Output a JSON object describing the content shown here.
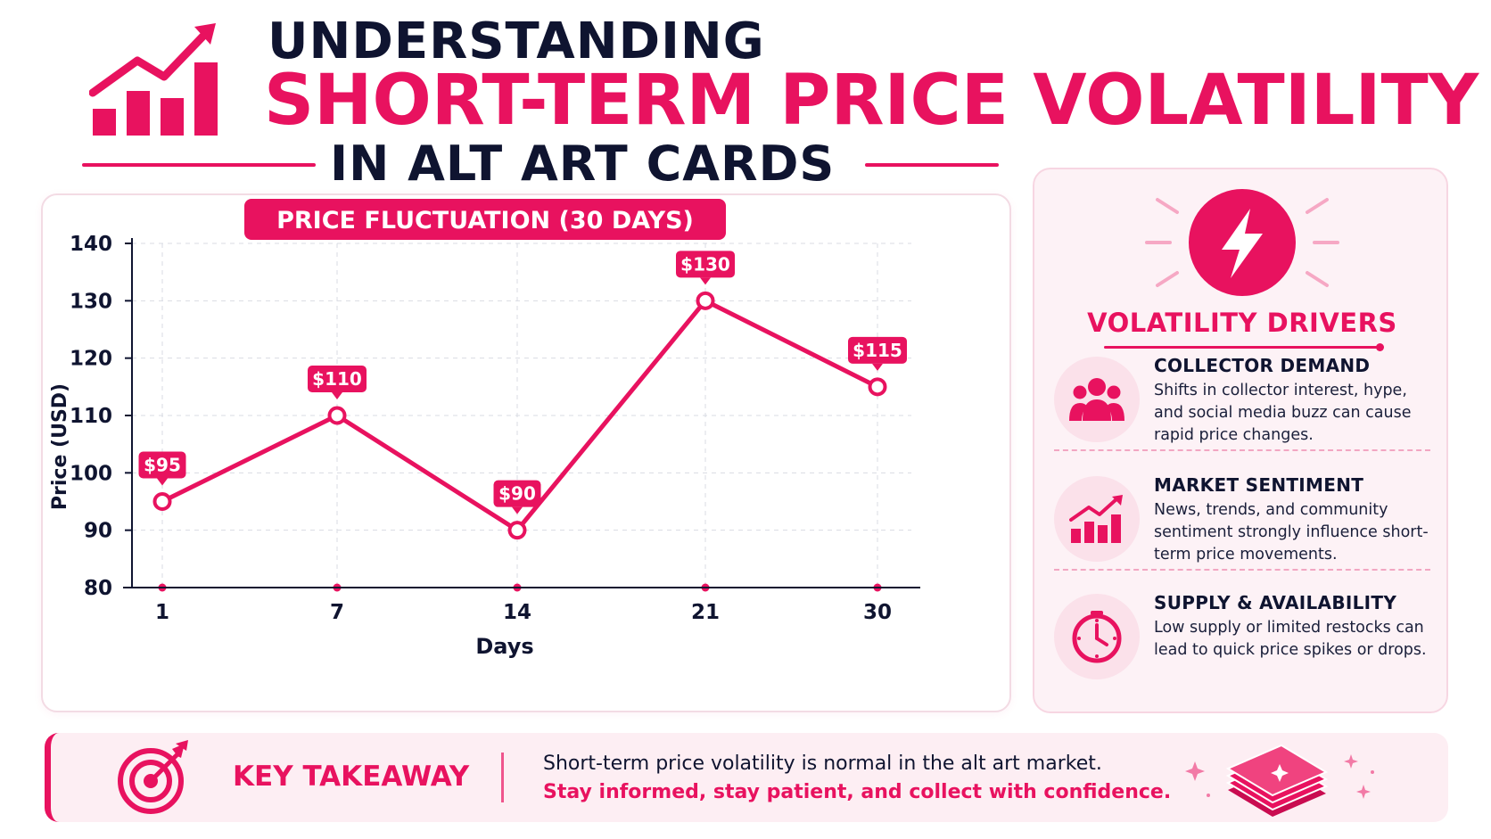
{
  "header": {
    "line1": "UNDERSTANDING",
    "line2": "SHORT-TERM PRICE VOLATILITY",
    "line3": "IN ALT ART CARDS",
    "logo_icon": "rising-bar-chart-icon"
  },
  "colors": {
    "accent": "#e8125f",
    "navy": "#0f1430",
    "panel_bg": "#fdf2f6"
  },
  "chart_data": {
    "type": "line",
    "title": "PRICE FLUCTUATION (30 DAYS)",
    "xlabel": "Days",
    "ylabel": "Price (USD)",
    "x": [
      1,
      7,
      14,
      21,
      30
    ],
    "x_ticks": [
      "1",
      "7",
      "14",
      "21",
      "30"
    ],
    "y_ticks": [
      "80",
      "90",
      "100",
      "110",
      "120",
      "130",
      "140"
    ],
    "ylim": [
      80,
      140
    ],
    "grid": true,
    "series": [
      {
        "values": [
          95,
          110,
          90,
          130,
          115
        ],
        "labels": [
          "$95",
          "$110",
          "$90",
          "$130",
          "$115"
        ]
      }
    ]
  },
  "drivers": {
    "title": "VOLATILITY DRIVERS",
    "header_icon": "lightning-bolt-icon",
    "items": [
      {
        "title": "COLLECTOR DEMAND",
        "text": "Shifts in collector interest, hype, and social media buzz can cause rapid price changes.",
        "icon": "people-group-icon"
      },
      {
        "title": "MARKET SENTIMENT",
        "text": "News, trends, and community sentiment strongly influence short-term price movements.",
        "icon": "trend-chart-icon"
      },
      {
        "title": "SUPPLY & AVAILABILITY",
        "text": "Low supply or limited restocks can lead to quick price spikes or drops.",
        "icon": "clock-icon"
      }
    ]
  },
  "takeaway": {
    "label": "KEY TAKEAWAY",
    "line1": "Short-term price volatility is normal in the alt art market.",
    "line2": "Stay informed, stay patient, and collect with confidence.",
    "icon": "target-icon",
    "decor_icon": "card-stack-icon"
  }
}
